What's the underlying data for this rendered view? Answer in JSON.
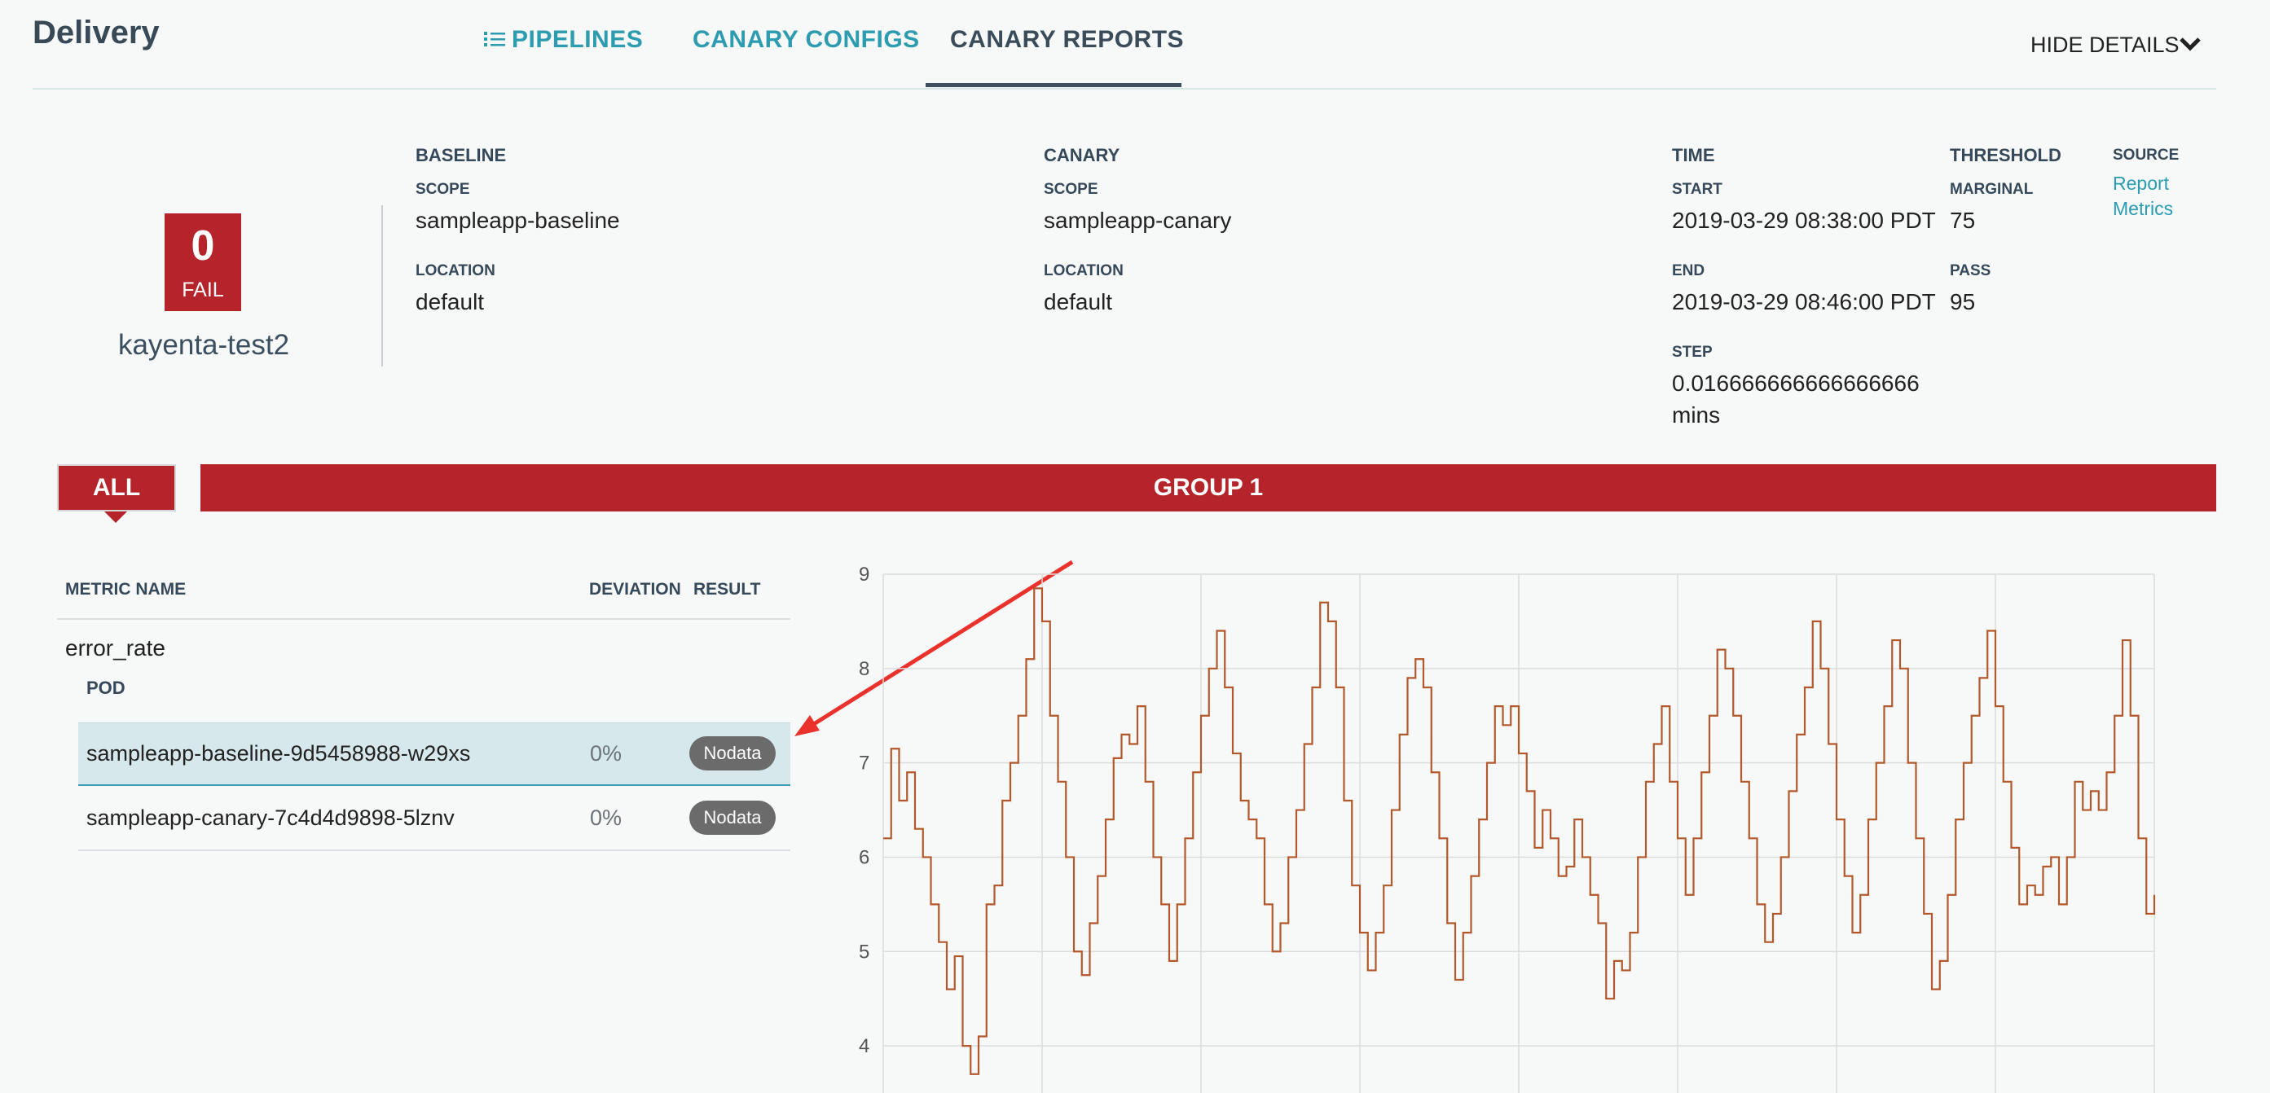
{
  "header": {
    "app_title": "Delivery",
    "tabs": [
      {
        "label": "PIPELINES",
        "icon": "list-icon"
      },
      {
        "label": "CANARY CONFIGS"
      },
      {
        "label": "CANARY REPORTS",
        "active": true
      }
    ],
    "hide_details": "HIDE DETAILS"
  },
  "score": {
    "value": "0",
    "status": "FAIL",
    "config_name": "kayenta-test2"
  },
  "baseline": {
    "title": "BASELINE",
    "scope_label": "SCOPE",
    "scope": "sampleapp-baseline",
    "location_label": "LOCATION",
    "location": "default"
  },
  "canary": {
    "title": "CANARY",
    "scope_label": "SCOPE",
    "scope": "sampleapp-canary",
    "location_label": "LOCATION",
    "location": "default"
  },
  "time": {
    "title": "TIME",
    "start_label": "START",
    "start": "2019-03-29 08:38:00 PDT",
    "end_label": "END",
    "end": "2019-03-29 08:46:00 PDT",
    "step_label": "STEP",
    "step_value": "0.016666666666666666",
    "step_unit": "mins"
  },
  "threshold": {
    "title": "THRESHOLD",
    "marginal_label": "MARGINAL",
    "marginal": "75",
    "pass_label": "PASS",
    "pass": "95"
  },
  "source": {
    "title": "SOURCE",
    "links": [
      "Report",
      "Metrics"
    ]
  },
  "groups": {
    "all": "ALL",
    "group1": "GROUP 1"
  },
  "table": {
    "columns": [
      "METRIC NAME",
      "DEVIATION",
      "RESULT"
    ],
    "metric": "error_rate",
    "pod_label": "POD",
    "rows": [
      {
        "pod": "sampleapp-baseline-9d5458988-w29xs",
        "deviation": "0%",
        "result": "Nodata"
      },
      {
        "pod": "sampleapp-canary-7c4d4d9898-5lznv",
        "deviation": "0%",
        "result": "Nodata"
      }
    ]
  },
  "colors": {
    "fail_red": "#b5242a",
    "link_teal": "#2d9cb0",
    "series_brown": "#b3582a",
    "selected_row": "#d6e8ec",
    "annotation_red": "#e8322b"
  },
  "chart_data": {
    "type": "line",
    "step": true,
    "title": "",
    "xlabel": "",
    "ylabel": "",
    "xlim": [
      0,
      480
    ],
    "ylim": [
      3.5,
      9
    ],
    "yticks": [
      4,
      5,
      6,
      7,
      8,
      9
    ],
    "grid": true,
    "legend": "none",
    "series": [
      {
        "color": "#b3582a",
        "points": [
          [
            0,
            6.2
          ],
          [
            3,
            7.15
          ],
          [
            6,
            6.6
          ],
          [
            9,
            6.9
          ],
          [
            12,
            6.3
          ],
          [
            15,
            6.0
          ],
          [
            18,
            5.5
          ],
          [
            21,
            5.1
          ],
          [
            24,
            4.6
          ],
          [
            27,
            4.95
          ],
          [
            30,
            4.0
          ],
          [
            33,
            3.7
          ],
          [
            36,
            4.1
          ],
          [
            39,
            5.5
          ],
          [
            42,
            5.7
          ],
          [
            45,
            6.6
          ],
          [
            48,
            7.0
          ],
          [
            51,
            7.5
          ],
          [
            54,
            8.1
          ],
          [
            57,
            8.85
          ],
          [
            60,
            8.5
          ],
          [
            63,
            7.5
          ],
          [
            66,
            6.8
          ],
          [
            69,
            6.0
          ],
          [
            72,
            5.0
          ],
          [
            75,
            4.75
          ],
          [
            78,
            5.3
          ],
          [
            81,
            5.8
          ],
          [
            84,
            6.4
          ],
          [
            87,
            7.05
          ],
          [
            90,
            7.3
          ],
          [
            93,
            7.2
          ],
          [
            96,
            7.6
          ],
          [
            99,
            6.8
          ],
          [
            102,
            6.0
          ],
          [
            105,
            5.5
          ],
          [
            108,
            4.9
          ],
          [
            111,
            5.5
          ],
          [
            114,
            6.2
          ],
          [
            117,
            6.9
          ],
          [
            120,
            7.5
          ],
          [
            123,
            8.0
          ],
          [
            126,
            8.4
          ],
          [
            129,
            7.8
          ],
          [
            132,
            7.1
          ],
          [
            135,
            6.6
          ],
          [
            138,
            6.4
          ],
          [
            141,
            6.2
          ],
          [
            144,
            5.5
          ],
          [
            147,
            5.0
          ],
          [
            150,
            5.3
          ],
          [
            153,
            6.0
          ],
          [
            156,
            6.5
          ],
          [
            159,
            7.2
          ],
          [
            162,
            7.8
          ],
          [
            165,
            8.7
          ],
          [
            168,
            8.5
          ],
          [
            171,
            7.8
          ],
          [
            174,
            6.6
          ],
          [
            177,
            5.7
          ],
          [
            180,
            5.2
          ],
          [
            183,
            4.8
          ],
          [
            186,
            5.2
          ],
          [
            189,
            5.7
          ],
          [
            192,
            6.5
          ],
          [
            195,
            7.3
          ],
          [
            198,
            7.9
          ],
          [
            201,
            8.1
          ],
          [
            204,
            7.8
          ],
          [
            207,
            6.9
          ],
          [
            210,
            6.2
          ],
          [
            213,
            5.3
          ],
          [
            216,
            4.7
          ],
          [
            219,
            5.2
          ],
          [
            222,
            5.8
          ],
          [
            225,
            6.4
          ],
          [
            228,
            7.0
          ],
          [
            231,
            7.6
          ],
          [
            234,
            7.4
          ],
          [
            237,
            7.6
          ],
          [
            240,
            7.1
          ],
          [
            243,
            6.7
          ],
          [
            246,
            6.1
          ],
          [
            249,
            6.5
          ],
          [
            252,
            6.2
          ],
          [
            255,
            5.8
          ],
          [
            258,
            5.9
          ],
          [
            261,
            6.4
          ],
          [
            264,
            6.0
          ],
          [
            267,
            5.6
          ],
          [
            270,
            5.3
          ],
          [
            273,
            4.5
          ],
          [
            276,
            4.9
          ],
          [
            279,
            4.8
          ],
          [
            282,
            5.2
          ],
          [
            285,
            6.0
          ],
          [
            288,
            6.8
          ],
          [
            291,
            7.2
          ],
          [
            294,
            7.6
          ],
          [
            297,
            6.8
          ],
          [
            300,
            6.2
          ],
          [
            303,
            5.6
          ],
          [
            306,
            6.2
          ],
          [
            309,
            6.9
          ],
          [
            312,
            7.5
          ],
          [
            315,
            8.2
          ],
          [
            318,
            8.0
          ],
          [
            321,
            7.5
          ],
          [
            324,
            6.8
          ],
          [
            327,
            6.2
          ],
          [
            330,
            5.5
          ],
          [
            333,
            5.1
          ],
          [
            336,
            5.4
          ],
          [
            339,
            6.0
          ],
          [
            342,
            6.7
          ],
          [
            345,
            7.3
          ],
          [
            348,
            7.8
          ],
          [
            351,
            8.5
          ],
          [
            354,
            8.0
          ],
          [
            357,
            7.2
          ],
          [
            360,
            6.4
          ],
          [
            363,
            5.8
          ],
          [
            366,
            5.2
          ],
          [
            369,
            5.6
          ],
          [
            372,
            6.4
          ],
          [
            375,
            7.0
          ],
          [
            378,
            7.6
          ],
          [
            381,
            8.3
          ],
          [
            384,
            8.0
          ],
          [
            387,
            7.0
          ],
          [
            390,
            6.2
          ],
          [
            393,
            5.4
          ],
          [
            396,
            4.6
          ],
          [
            399,
            4.9
          ],
          [
            402,
            5.6
          ],
          [
            405,
            6.4
          ],
          [
            408,
            7.0
          ],
          [
            411,
            7.5
          ],
          [
            414,
            7.9
          ],
          [
            417,
            8.4
          ],
          [
            420,
            7.6
          ],
          [
            423,
            6.8
          ],
          [
            426,
            6.1
          ],
          [
            429,
            5.5
          ],
          [
            432,
            5.7
          ],
          [
            435,
            5.6
          ],
          [
            438,
            5.9
          ],
          [
            441,
            6.0
          ],
          [
            444,
            5.5
          ],
          [
            447,
            6.0
          ],
          [
            450,
            6.8
          ],
          [
            453,
            6.5
          ],
          [
            456,
            6.7
          ],
          [
            459,
            6.5
          ],
          [
            462,
            6.9
          ],
          [
            465,
            7.5
          ],
          [
            468,
            8.3
          ],
          [
            471,
            7.5
          ],
          [
            474,
            6.2
          ],
          [
            477,
            5.4
          ],
          [
            480,
            5.6
          ]
        ]
      }
    ]
  }
}
